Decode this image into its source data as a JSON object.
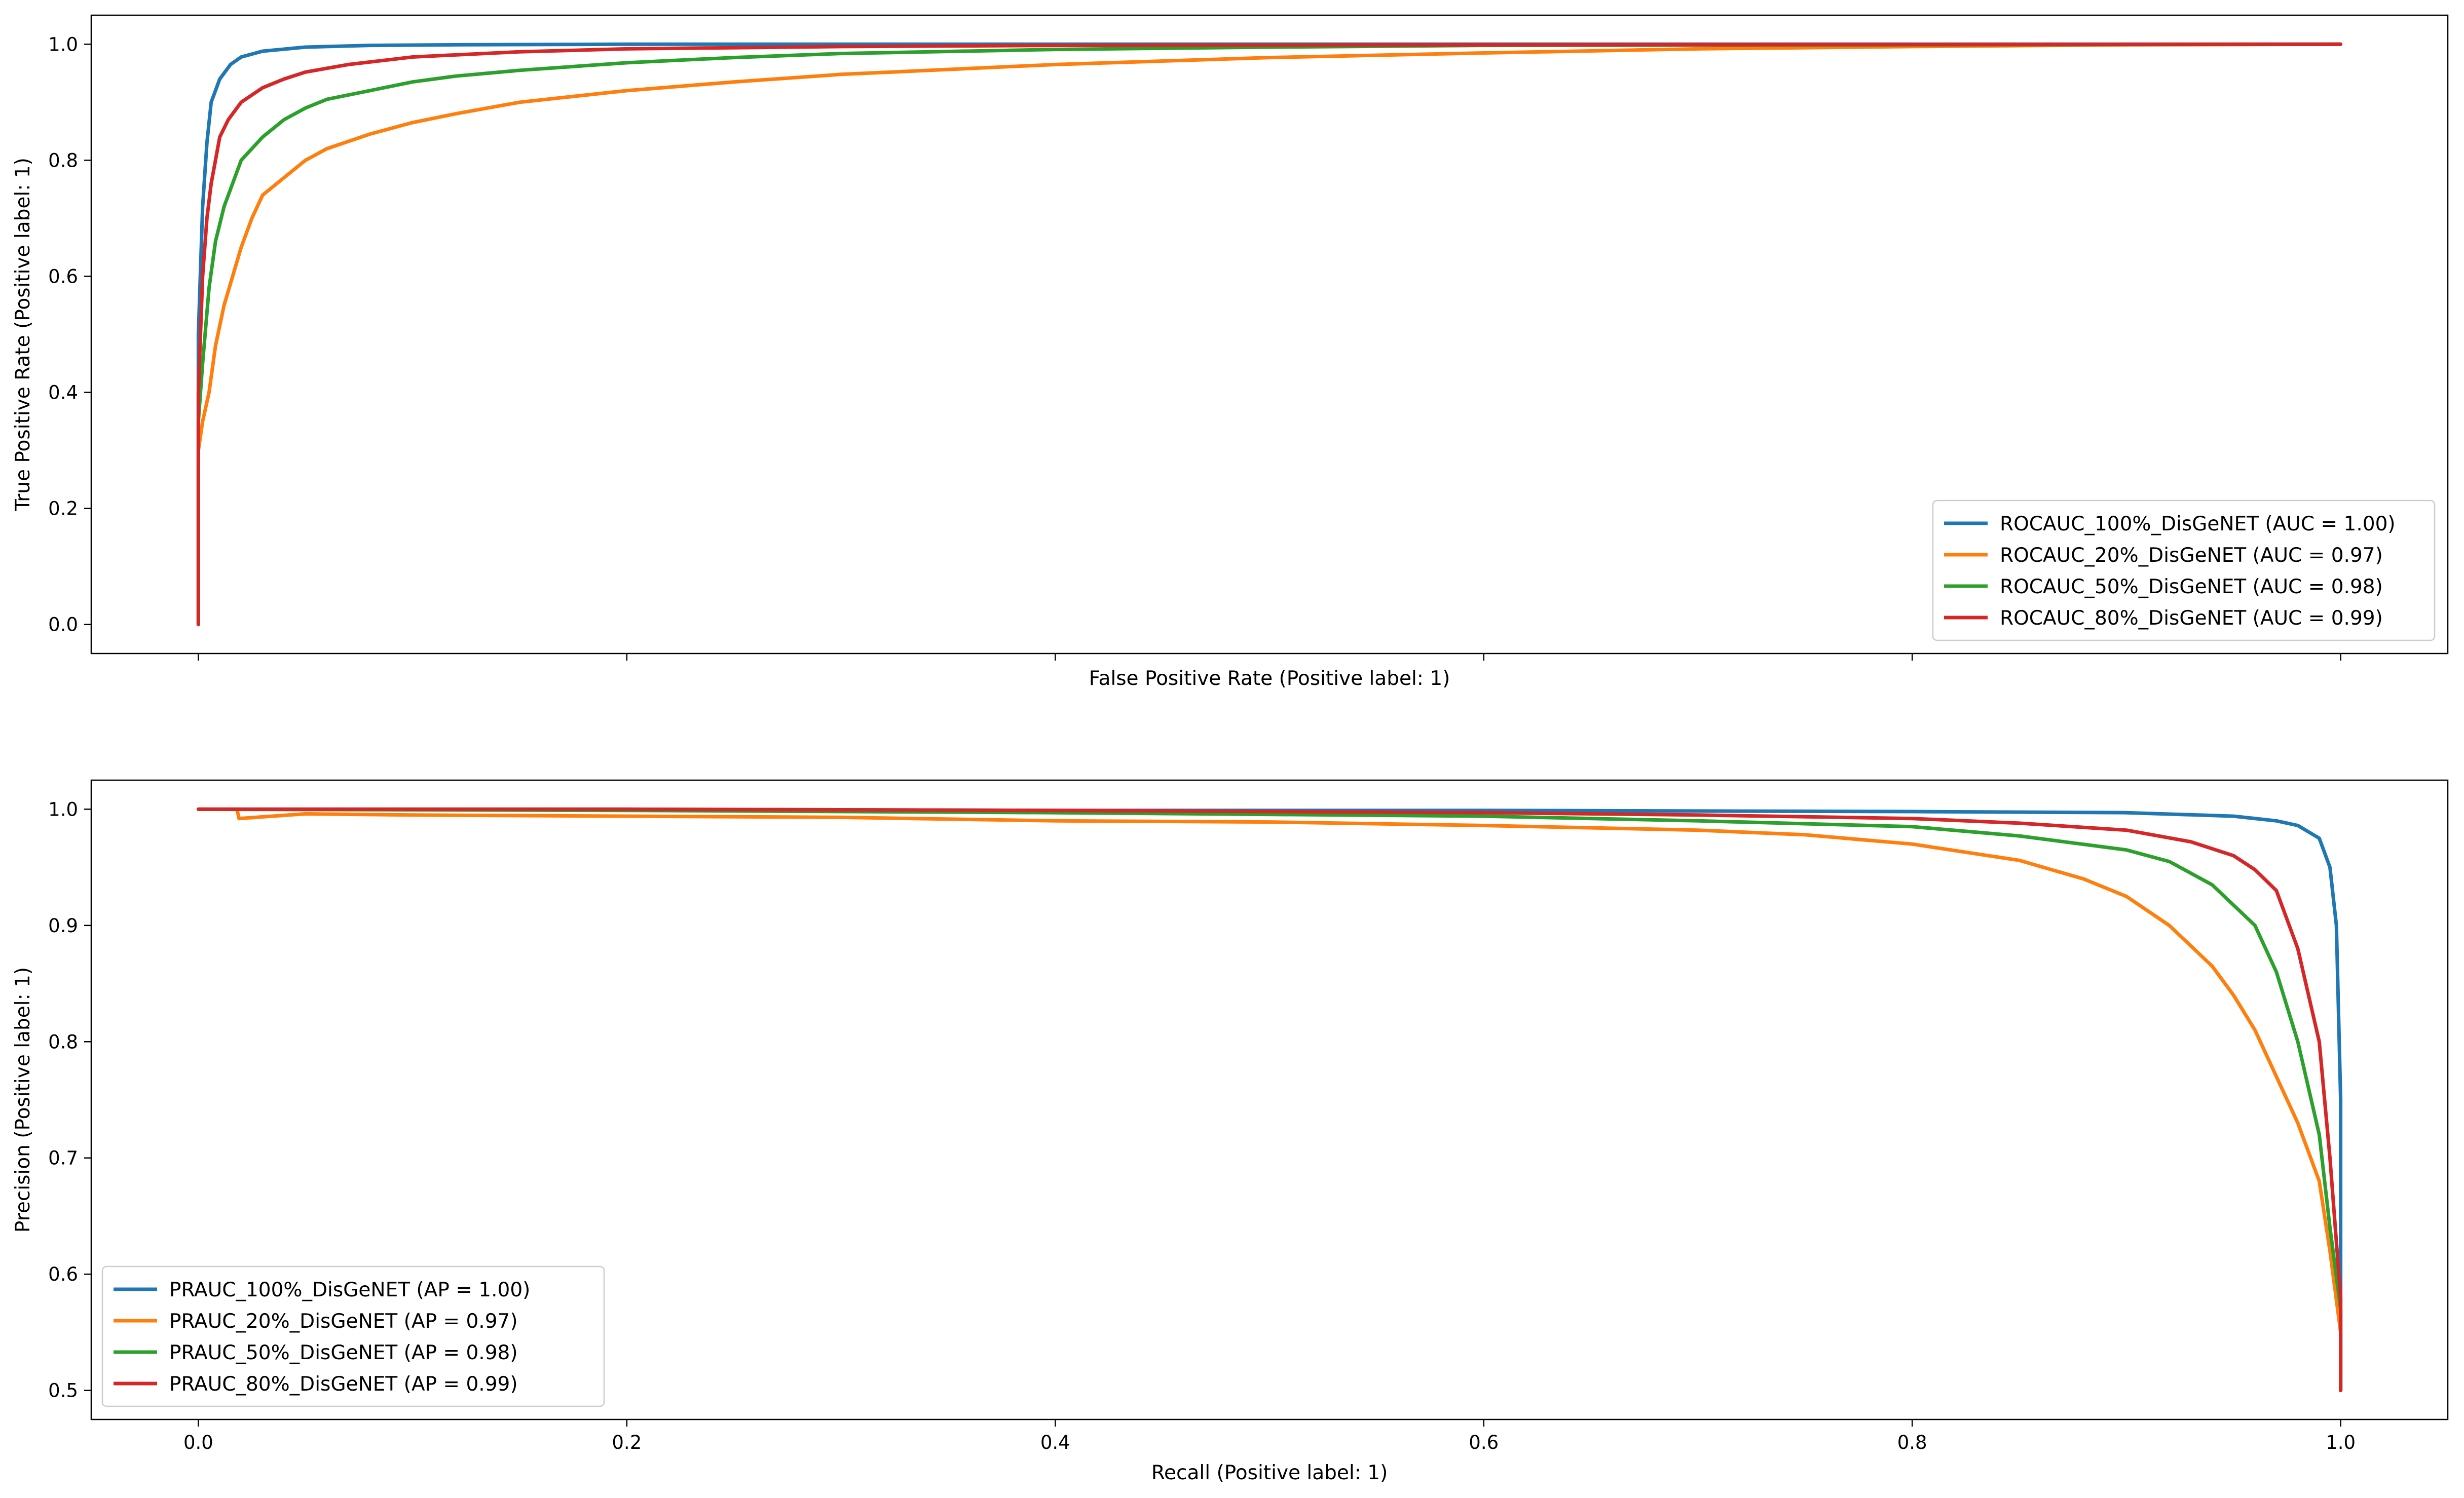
{
  "chart_data": [
    {
      "type": "line",
      "xlabel": "False Positive Rate (Positive label: 1)",
      "ylabel": "True Positive Rate (Positive label: 1)",
      "xlim": [
        -0.05,
        1.05
      ],
      "ylim": [
        -0.05,
        1.05
      ],
      "xticks": [
        0.0,
        0.2,
        0.4,
        0.6,
        0.8,
        1.0
      ],
      "xtick_labels_visible": false,
      "yticks": [
        0.0,
        0.2,
        0.4,
        0.6,
        0.8,
        1.0
      ],
      "ytick_labels": [
        "0.0",
        "0.2",
        "0.4",
        "0.6",
        "0.8",
        "1.0"
      ],
      "legend_position": "lower-right",
      "series": [
        {
          "name": "ROCAUC_100%_DisGeNET (AUC = 1.00)",
          "color": "#1f77b4",
          "x": [
            0,
            0,
            0.002,
            0.004,
            0.006,
            0.01,
            0.015,
            0.02,
            0.03,
            0.05,
            0.08,
            0.12,
            0.2,
            0.4,
            0.7,
            1.0
          ],
          "y": [
            0,
            0.5,
            0.72,
            0.83,
            0.9,
            0.94,
            0.965,
            0.978,
            0.988,
            0.995,
            0.998,
            0.999,
            1.0,
            1.0,
            1.0,
            1.0
          ]
        },
        {
          "name": "ROCAUC_20%_DisGeNET (AUC = 0.97)",
          "color": "#ff7f0e",
          "x": [
            0,
            0,
            0.002,
            0.005,
            0.008,
            0.012,
            0.016,
            0.02,
            0.025,
            0.03,
            0.04,
            0.05,
            0.06,
            0.08,
            0.1,
            0.12,
            0.15,
            0.2,
            0.25,
            0.3,
            0.4,
            0.5,
            0.6,
            0.7,
            0.8,
            0.9,
            1.0
          ],
          "y": [
            0,
            0.3,
            0.35,
            0.4,
            0.48,
            0.55,
            0.6,
            0.65,
            0.7,
            0.74,
            0.77,
            0.8,
            0.82,
            0.845,
            0.865,
            0.88,
            0.9,
            0.92,
            0.935,
            0.948,
            0.965,
            0.977,
            0.985,
            0.992,
            0.996,
            0.999,
            1.0
          ]
        },
        {
          "name": "ROCAUC_50%_DisGeNET (AUC = 0.98)",
          "color": "#2ca02c",
          "x": [
            0,
            0,
            0.002,
            0.005,
            0.008,
            0.012,
            0.016,
            0.02,
            0.03,
            0.04,
            0.05,
            0.06,
            0.08,
            0.1,
            0.12,
            0.15,
            0.2,
            0.25,
            0.3,
            0.4,
            0.5,
            0.6,
            0.8,
            1.0
          ],
          "y": [
            0,
            0.35,
            0.45,
            0.58,
            0.66,
            0.72,
            0.76,
            0.8,
            0.84,
            0.87,
            0.89,
            0.905,
            0.92,
            0.935,
            0.945,
            0.955,
            0.968,
            0.977,
            0.984,
            0.991,
            0.995,
            0.998,
            0.999,
            1.0
          ]
        },
        {
          "name": "ROCAUC_80%_DisGeNET (AUC = 0.99)",
          "color": "#d62728",
          "x": [
            0,
            0,
            0.002,
            0.004,
            0.006,
            0.008,
            0.01,
            0.014,
            0.02,
            0.03,
            0.04,
            0.05,
            0.07,
            0.1,
            0.15,
            0.2,
            0.3,
            0.4,
            0.6,
            1.0
          ],
          "y": [
            0,
            0.4,
            0.6,
            0.7,
            0.76,
            0.8,
            0.84,
            0.87,
            0.9,
            0.925,
            0.94,
            0.952,
            0.965,
            0.978,
            0.987,
            0.992,
            0.996,
            0.998,
            0.999,
            1.0
          ]
        }
      ]
    },
    {
      "type": "line",
      "xlabel": "Recall (Positive label: 1)",
      "ylabel": "Precision (Positive label: 1)",
      "xlim": [
        -0.05,
        1.05
      ],
      "ylim": [
        0.475,
        1.025
      ],
      "xticks": [
        0.0,
        0.2,
        0.4,
        0.6,
        0.8,
        1.0
      ],
      "xtick_labels": [
        "0.0",
        "0.2",
        "0.4",
        "0.6",
        "0.8",
        "1.0"
      ],
      "yticks": [
        0.5,
        0.6,
        0.7,
        0.8,
        0.9,
        1.0
      ],
      "ytick_labels": [
        "0.5",
        "0.6",
        "0.7",
        "0.8",
        "0.9",
        "1.0"
      ],
      "legend_position": "lower-left",
      "series": [
        {
          "name": "PRAUC_100%_DisGeNET (AP = 1.00)",
          "color": "#1f77b4",
          "x": [
            0,
            0.2,
            0.4,
            0.6,
            0.8,
            0.9,
            0.95,
            0.97,
            0.98,
            0.99,
            0.995,
            0.998,
            1.0,
            1.0
          ],
          "y": [
            1.0,
            1.0,
            0.999,
            0.999,
            0.998,
            0.997,
            0.994,
            0.99,
            0.986,
            0.975,
            0.95,
            0.9,
            0.75,
            0.5
          ]
        },
        {
          "name": "PRAUC_20%_DisGeNET (AP = 0.97)",
          "color": "#ff7f0e",
          "x": [
            0,
            0.018,
            0.019,
            0.05,
            0.1,
            0.2,
            0.3,
            0.4,
            0.5,
            0.6,
            0.7,
            0.75,
            0.8,
            0.85,
            0.88,
            0.9,
            0.92,
            0.94,
            0.95,
            0.96,
            0.97,
            0.98,
            0.99,
            0.995,
            1.0,
            1.0
          ],
          "y": [
            1.0,
            1.0,
            0.992,
            0.996,
            0.995,
            0.994,
            0.993,
            0.99,
            0.989,
            0.986,
            0.982,
            0.978,
            0.97,
            0.956,
            0.94,
            0.925,
            0.9,
            0.865,
            0.84,
            0.81,
            0.77,
            0.73,
            0.68,
            0.62,
            0.55,
            0.5
          ]
        },
        {
          "name": "PRAUC_50%_DisGeNET (AP = 0.98)",
          "color": "#2ca02c",
          "x": [
            0,
            0.2,
            0.4,
            0.6,
            0.7,
            0.8,
            0.85,
            0.9,
            0.92,
            0.94,
            0.96,
            0.97,
            0.98,
            0.99,
            0.995,
            1.0,
            1.0
          ],
          "y": [
            1.0,
            0.999,
            0.997,
            0.994,
            0.99,
            0.985,
            0.977,
            0.965,
            0.955,
            0.935,
            0.9,
            0.86,
            0.8,
            0.72,
            0.64,
            0.57,
            0.5
          ]
        },
        {
          "name": "PRAUC_80%_DisGeNET (AP = 0.99)",
          "color": "#d62728",
          "x": [
            0,
            0.2,
            0.4,
            0.6,
            0.7,
            0.8,
            0.85,
            0.9,
            0.93,
            0.95,
            0.96,
            0.97,
            0.98,
            0.99,
            0.995,
            1.0,
            1.0
          ],
          "y": [
            1.0,
            1.0,
            0.999,
            0.997,
            0.995,
            0.992,
            0.988,
            0.982,
            0.972,
            0.96,
            0.948,
            0.93,
            0.88,
            0.8,
            0.7,
            0.58,
            0.5
          ]
        }
      ]
    }
  ]
}
